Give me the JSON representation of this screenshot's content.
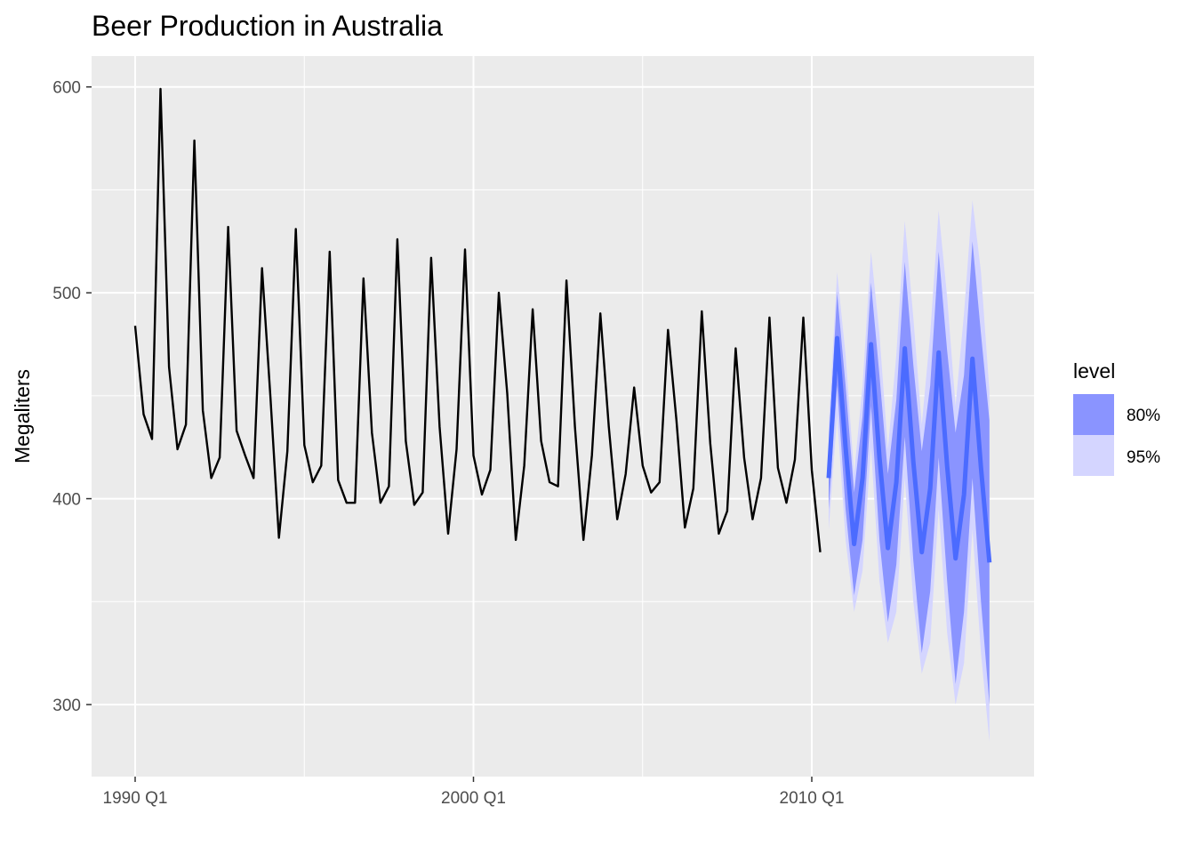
{
  "chart_data": {
    "type": "line",
    "title": "Beer Production in Australia",
    "xlabel": "",
    "ylabel": "Megaliters",
    "x_ticks": [
      "1990 Q1",
      "2000 Q1",
      "2010 Q1"
    ],
    "y_ticks": [
      300,
      400,
      500,
      600
    ],
    "ylim": [
      265,
      615
    ],
    "grid": true,
    "legend": {
      "title": "level",
      "position": "right",
      "items": [
        {
          "label": "80%",
          "color": "#8a94ff"
        },
        {
          "label": "95%",
          "color": "#d4d5ff"
        }
      ]
    },
    "colors": {
      "history": "#000000",
      "forecast": "#4b6bff",
      "band80": "#8a94ff",
      "band95": "#d4d5ff"
    },
    "history": {
      "name": "",
      "start_quarter": "1990 Q1",
      "values": [
        484,
        441,
        429,
        599,
        464,
        424,
        436,
        574,
        443,
        410,
        420,
        532,
        433,
        421,
        410,
        512,
        449,
        381,
        423,
        531,
        426,
        408,
        416,
        520,
        409,
        398,
        398,
        507,
        432,
        398,
        406,
        526,
        428,
        397,
        403,
        517,
        435,
        383,
        424,
        521,
        421,
        402,
        414,
        500,
        451,
        380,
        416,
        492,
        428,
        408,
        406,
        506,
        435,
        380,
        421,
        490,
        435,
        390,
        412,
        454,
        416,
        403,
        408,
        482,
        438,
        386,
        405,
        491,
        427,
        383,
        394,
        473,
        420,
        390,
        410,
        488,
        415,
        398,
        419,
        488,
        414,
        374
      ]
    },
    "forecast": {
      "start_quarter": "2010 Q3",
      "mean": [
        410,
        478,
        425,
        378,
        410,
        475,
        420,
        376,
        408,
        473,
        418,
        374,
        405,
        471,
        416,
        371,
        402,
        468,
        415,
        369
      ],
      "lo80": [
        395,
        455,
        395,
        353,
        380,
        445,
        380,
        340,
        368,
        430,
        370,
        325,
        355,
        420,
        360,
        310,
        345,
        410,
        350,
        300
      ],
      "hi80": [
        425,
        500,
        455,
        403,
        440,
        505,
        460,
        412,
        448,
        515,
        465,
        423,
        455,
        520,
        472,
        432,
        460,
        525,
        480,
        438
      ],
      "lo95": [
        385,
        440,
        380,
        345,
        365,
        425,
        360,
        330,
        345,
        410,
        350,
        315,
        330,
        395,
        335,
        300,
        320,
        385,
        325,
        282
      ],
      "hi95": [
        435,
        510,
        470,
        412,
        455,
        520,
        480,
        424,
        470,
        535,
        488,
        436,
        480,
        540,
        498,
        445,
        490,
        545,
        510,
        452
      ]
    }
  }
}
